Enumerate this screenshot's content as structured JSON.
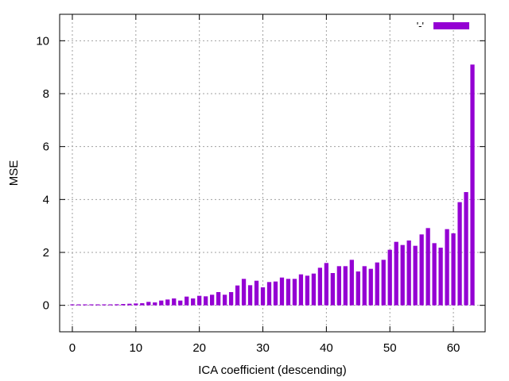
{
  "chart_data": {
    "type": "bar",
    "title": "",
    "xlabel": "ICA coefficient (descending)",
    "ylabel": "MSE",
    "xlim": [
      -2,
      65
    ],
    "ylim": [
      -1,
      11
    ],
    "x_ticks": [
      0,
      10,
      20,
      30,
      40,
      50,
      60
    ],
    "y_ticks": [
      0,
      2,
      4,
      6,
      8,
      10
    ],
    "grid": true,
    "legend": {
      "position": "top-right",
      "entries": [
        {
          "label": "'-'",
          "color": "#9400d3"
        }
      ]
    },
    "bar_color": "#9400d3",
    "series": [
      {
        "x": [
          0,
          1,
          2,
          3,
          4,
          5,
          6,
          7,
          8,
          9,
          10,
          11,
          12,
          13,
          14,
          15,
          16,
          17,
          18,
          19,
          20,
          21,
          22,
          23,
          24,
          25,
          26,
          27,
          28,
          29,
          30,
          31,
          32,
          33,
          34,
          35,
          36,
          37,
          38,
          39,
          40,
          41,
          42,
          43,
          44,
          45,
          46,
          47,
          48,
          49,
          50,
          51,
          52,
          53,
          54,
          55,
          56,
          57,
          58,
          59,
          60,
          61,
          62,
          63
        ],
        "values": [
          0.005,
          0.005,
          0.005,
          0.005,
          0.01,
          0.01,
          0.03,
          0.04,
          0.05,
          0.06,
          0.07,
          0.08,
          0.13,
          0.11,
          0.18,
          0.22,
          0.26,
          0.18,
          0.33,
          0.26,
          0.36,
          0.34,
          0.4,
          0.5,
          0.4,
          0.5,
          0.75,
          1.0,
          0.76,
          0.93,
          0.68,
          0.88,
          0.9,
          1.05,
          1.0,
          1.0,
          1.17,
          1.12,
          1.2,
          1.42,
          1.6,
          1.22,
          1.48,
          1.48,
          1.72,
          1.28,
          1.48,
          1.38,
          1.62,
          1.72,
          2.1,
          2.4,
          2.28,
          2.45,
          2.25,
          2.68,
          2.92,
          2.35,
          2.18,
          2.88,
          2.72,
          3.9,
          4.28,
          9.1
        ]
      }
    ]
  }
}
